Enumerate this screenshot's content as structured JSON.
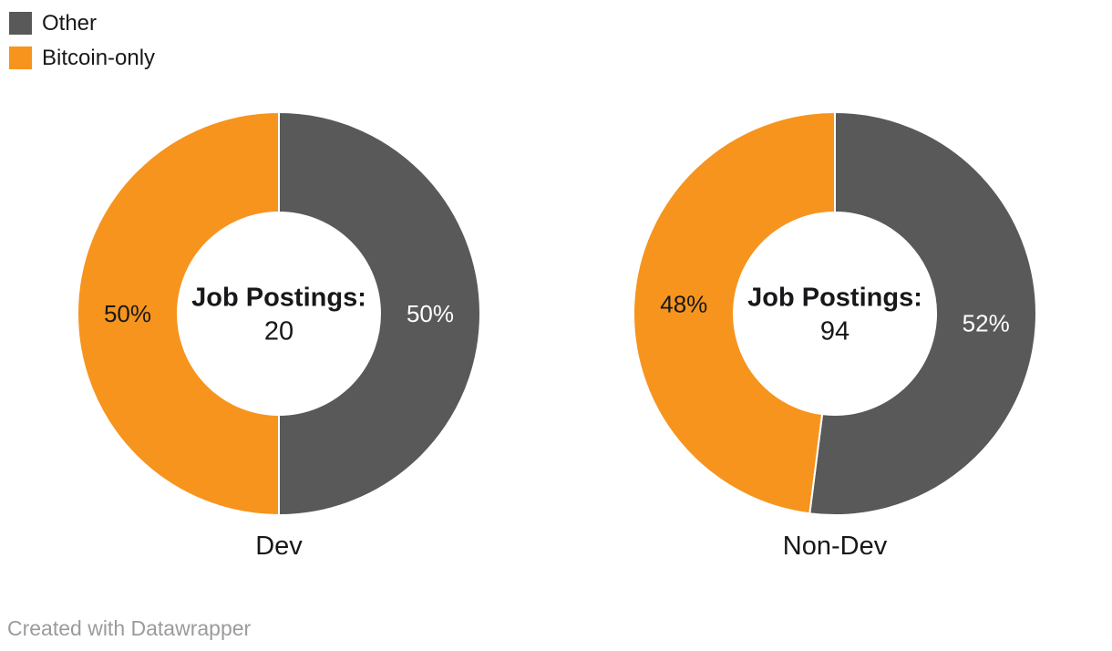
{
  "chart_data": {
    "type": "pie",
    "variant": "donut",
    "direction": "clockwise",
    "start_angle_deg": 0,
    "legend_position": "top-left",
    "legend_entries": [
      {
        "label": "Other",
        "color": "#595959"
      },
      {
        "label": "Bitcoin-only",
        "color": "#f6941d"
      }
    ],
    "donuts": [
      {
        "category": "Dev",
        "center_title": "Job Postings:",
        "center_value": "20",
        "slices": [
          {
            "name": "Other",
            "percent": 50,
            "display": "50%",
            "color": "#595959",
            "label_color": "#ffffff"
          },
          {
            "name": "Bitcoin-only",
            "percent": 50,
            "display": "50%",
            "color": "#f6941d",
            "label_color": "#18181b"
          }
        ]
      },
      {
        "category": "Non-Dev",
        "center_title": "Job Postings:",
        "center_value": "94",
        "slices": [
          {
            "name": "Other",
            "percent": 52,
            "display": "52%",
            "color": "#595959",
            "label_color": "#ffffff"
          },
          {
            "name": "Bitcoin-only",
            "percent": 48,
            "display": "48%",
            "color": "#f6941d",
            "label_color": "#18181b"
          }
        ]
      }
    ]
  },
  "footer": {
    "credit": "Created with Datawrapper"
  }
}
